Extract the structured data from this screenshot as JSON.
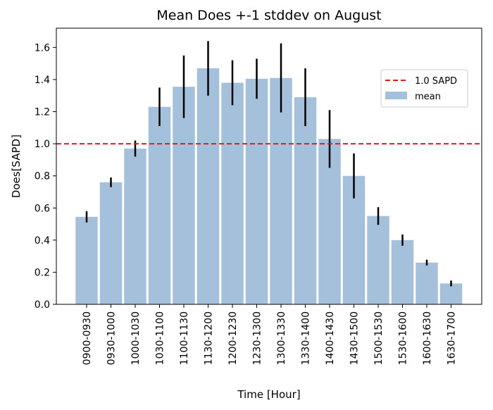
{
  "chart_data": {
    "type": "bar",
    "title": "Mean Does +-1 stddev on August",
    "xlabel": "Time [Hour]",
    "ylabel": "Does[SAPD]",
    "ylim": [
      0,
      1.72
    ],
    "yticks": [
      "0.0",
      "0.2",
      "0.4",
      "0.6",
      "0.8",
      "1.0",
      "1.2",
      "1.4",
      "1.6"
    ],
    "categories": [
      "0900-0930",
      "0930-1000",
      "1000-1030",
      "1030-1100",
      "1100-1130",
      "1130-1200",
      "1200-1230",
      "1230-1300",
      "1300-1330",
      "1330-1400",
      "1400-1430",
      "1430-1500",
      "1500-1530",
      "1530-1600",
      "1600-1630",
      "1630-1700"
    ],
    "series": [
      {
        "name": "mean",
        "color": "#a5c0db",
        "values": [
          0.545,
          0.76,
          0.97,
          1.23,
          1.355,
          1.47,
          1.38,
          1.405,
          1.41,
          1.29,
          1.03,
          0.8,
          0.55,
          0.4,
          0.26,
          0.13
        ],
        "error": [
          0.035,
          0.03,
          0.05,
          0.12,
          0.195,
          0.17,
          0.14,
          0.125,
          0.215,
          0.18,
          0.18,
          0.14,
          0.055,
          0.035,
          0.018,
          0.018
        ]
      }
    ],
    "reference_line": {
      "label": "1.0 SAPD",
      "value": 1.0,
      "color": "#e31a1c",
      "style": "dashed"
    },
    "legend": {
      "placement": "upper-right",
      "entries": [
        "1.0 SAPD",
        "mean"
      ]
    },
    "grid": false
  }
}
